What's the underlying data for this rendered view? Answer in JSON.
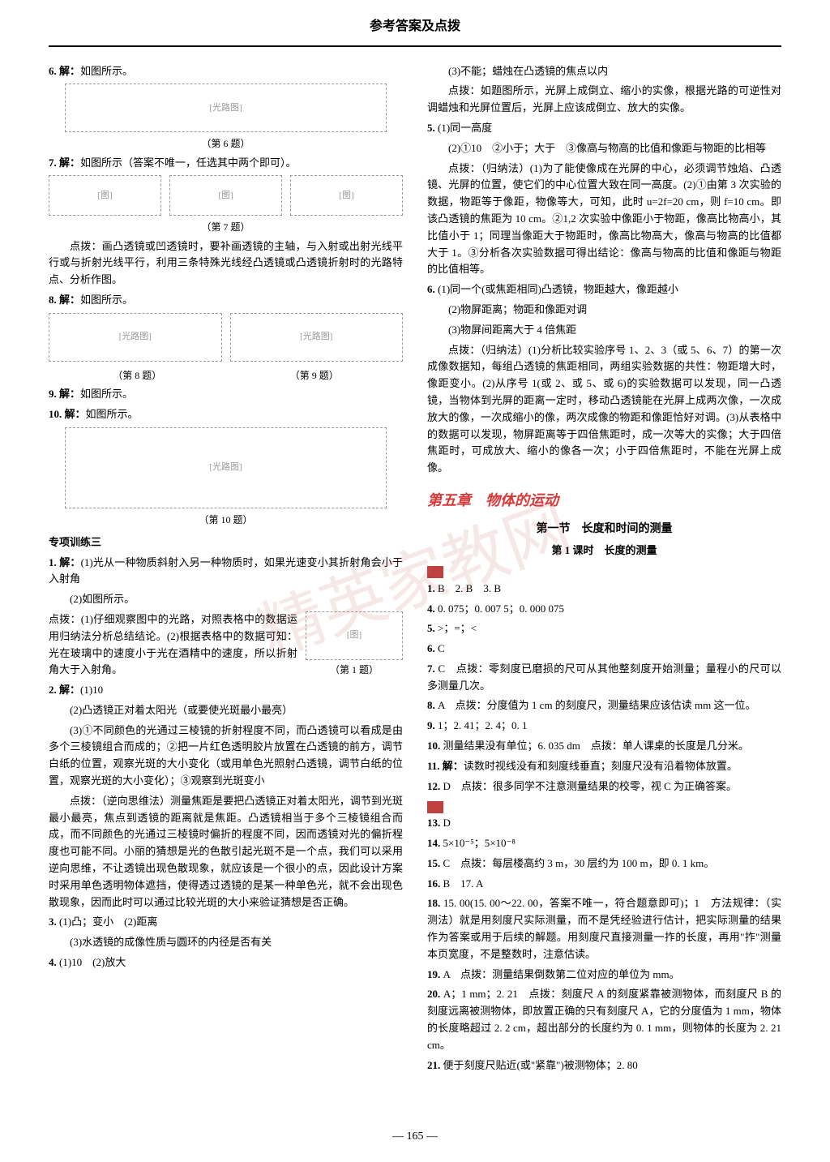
{
  "header": {
    "title": "参考答案及点拨"
  },
  "left_column": {
    "items": [
      {
        "label": "6.",
        "prefix": "解：",
        "text": "如图所示。"
      },
      {
        "type": "figure",
        "caption": "（第 6 题）"
      },
      {
        "label": "7.",
        "prefix": "解：",
        "text": "如图所示（答案不唯一，任选其中两个即可）。"
      },
      {
        "type": "figure-row",
        "count": 3
      },
      {
        "type": "caption",
        "text": "（第 7 题）"
      },
      {
        "type": "para",
        "text": "点拨：画凸透镜或凹透镜时，要补画透镜的主轴，与入射或出射光线平行或与折射光线平行，利用三条特殊光线经凸透镜或凸透镜折射时的光路特点、分析作图。"
      },
      {
        "label": "8.",
        "prefix": "解：",
        "text": "如图所示。"
      },
      {
        "type": "figure-row-2"
      },
      {
        "type": "caption-row",
        "left": "（第 8 题）",
        "right": "（第 9 题）"
      },
      {
        "label": "9.",
        "prefix": "解：",
        "text": "如图所示。"
      },
      {
        "label": "10.",
        "prefix": "解：",
        "text": "如图所示。"
      },
      {
        "type": "figure-large",
        "caption": "（第 10 题）"
      },
      {
        "type": "subtitle",
        "text": "专项训练三"
      },
      {
        "label": "1.",
        "prefix": "解：",
        "text": "(1)光从一种物质斜射入另一种物质时，如果光速变小其折射角会小于入射角"
      },
      {
        "type": "para",
        "text": "(2)如图所示。"
      },
      {
        "type": "para-with-figure",
        "text": "点拨：(1)仔细观察图中的光路，对照表格中的数据运用归纳法分析总结结论。(2)根据表格中的数据可知：光在玻璃中的速度小于光在酒精中的速度，所以折射角大于入射角。",
        "caption": "（第 1 题）"
      },
      {
        "label": "2.",
        "prefix": "解：",
        "text": "(1)10"
      },
      {
        "type": "para",
        "text": "(2)凸透镜正对着太阳光（或要使光斑最小最亮）"
      },
      {
        "type": "para",
        "text": "(3)①不同颜色的光通过三棱镜的折射程度不同，而凸透镜可以看成是由多个三棱镜组合而成的；②把一片红色透明胶片放置在凸透镜的前方，调节白纸的位置，观察光斑的大小变化（或用单色光照射凸透镜，调节白纸的位置，观察光斑的大小变化）；③观察到光斑变小"
      },
      {
        "type": "para",
        "text": "点拨：（逆向思维法）测量焦距是要把凸透镜正对着太阳光，调节到光斑最小最亮，焦点到透镜的距离就是焦距。凸透镜相当于多个三棱镜组合而成，而不同颜色的光通过三棱镜时偏折的程度不同，因而透镜对光的偏折程度也可能不同。小丽的猜想是光的色散引起光斑不是一个点，我们可以采用逆向思维，不让透镜出现色散现象，就应该是一个很小的点，因此设计方案时采用单色透明物体遮挡，使得透过透镜的是某一种单色光，就不会出现色散现象，因而此时可以通过比较光斑的大小来验证猜想是否正确。"
      },
      {
        "label": "3.",
        "text": "(1)凸；变小　(2)距离"
      },
      {
        "type": "para",
        "text": "(3)水透镜的成像性质与圆环的内径是否有关"
      },
      {
        "label": "4.",
        "text": "(1)10　(2)放大"
      }
    ]
  },
  "right_column": {
    "items": [
      {
        "type": "para",
        "text": "(3)不能；蜡烛在凸透镜的焦点以内"
      },
      {
        "type": "para",
        "text": "点拨：如题图所示，光屏上成倒立、缩小的实像，根据光路的可逆性对调蜡烛和光屏位置后，光屏上应该成倒立、放大的实像。"
      },
      {
        "label": "5.",
        "text": "(1)同一高度"
      },
      {
        "type": "para",
        "text": "(2)①10　②小于；大于　③像高与物高的比值和像距与物距的比相等"
      },
      {
        "type": "para",
        "text": "点拨：（归纳法）(1)为了能使像成在光屏的中心，必须调节烛焰、凸透镜、光屏的位置，使它们的中心位置大致在同一高度。(2)①由第 3 次实验的数据，物距等于像距，物像等大，可知，此时 u=2f=20 cm，则 f=10 cm。即该凸透镜的焦距为 10 cm。②1,2 次实验中像距小于物距，像高比物高小，其比值小于 1；同理当像距大于物距时，像高比物高大，像高与物高的比值都大于 1。③分析各次实验数据可得出结论：像高与物高的比值和像距与物距的比值相等。"
      },
      {
        "label": "6.",
        "text": "(1)同一个(或焦距相同)凸透镜，物距越大，像距越小"
      },
      {
        "type": "para",
        "text": "(2)物屏距离；物距和像距对调"
      },
      {
        "type": "para",
        "text": "(3)物屏间距离大于 4 倍焦距"
      },
      {
        "type": "para",
        "text": "点拨：（归纳法）(1)分析比较实验序号 1、2、3（或 5、6、7）的第一次成像数据知，每组凸透镜的焦距相同，两组实验数据的共性：物距增大时，像距变小。(2)从序号 1(或 2、或 5、或 6)的实验数据可以发现，同一凸透镜，当物体到光屏的距离一定时，移动凸透镜能在光屏上成两次像，一次成放大的像，一次成缩小的像，两次成像的物距和像距恰好对调。(3)从表格中的数据可以发现，物屏距离等于四倍焦距时，成一次等大的实像；大于四倍焦距时，可成放大、缩小的像各一次；小于四倍焦距时，不能在光屏上成像。"
      },
      {
        "type": "section-title",
        "text": "第五章　物体的运动"
      },
      {
        "type": "subsection-title",
        "text": "第一节　长度和时间的测量"
      },
      {
        "type": "lesson-title",
        "text": "第 1 课时　长度的测量"
      },
      {
        "type": "icon"
      },
      {
        "label": "1.",
        "text": "B　2. B　3. B"
      },
      {
        "label": "4.",
        "text": "0. 075；0. 007 5；0. 000 075"
      },
      {
        "label": "5.",
        "text": ">；=；<"
      },
      {
        "label": "6.",
        "text": "C"
      },
      {
        "label": "7.",
        "text": "C　点拨：零刻度已磨损的尺可从其他整刻度开始测量；量程小的尺可以多测量几次。"
      },
      {
        "label": "8.",
        "text": "A　点拨：分度值为 1 cm 的刻度尺，测量结果应该估读 mm 这一位。"
      },
      {
        "label": "9.",
        "text": "1；2. 41；2. 4；0. 1"
      },
      {
        "label": "10.",
        "text": "测量结果没有单位；6. 035 dm　点拨：单人课桌的长度是几分米。"
      },
      {
        "label": "11.",
        "prefix": "解：",
        "text": "读数时视线没有和刻度线垂直；刻度尺没有沿着物体放置。"
      },
      {
        "label": "12.",
        "text": "D　点拨：很多同学不注意测量结果的校零，视 C 为正确答案。"
      },
      {
        "type": "icon"
      },
      {
        "label": "13.",
        "text": "D"
      },
      {
        "label": "14.",
        "text": "5×10⁻⁵；5×10⁻⁸"
      },
      {
        "label": "15.",
        "text": "C　点拨：每层楼高约 3 m，30 层约为 100 m，即 0. 1 km。"
      },
      {
        "label": "16.",
        "text": "B　17. A"
      },
      {
        "label": "18.",
        "text": "15. 00(15. 00～22. 00，答案不唯一，符合题意即可)；1　方法规律：（实测法）就是用刻度尺实际测量，而不是凭经验进行估计，把实际测量的结果作为答案或用于后续的解题。用刻度尺直接测量一拃的长度，再用\"拃\"测量本页宽度，不是整数时，注意估读。"
      },
      {
        "label": "19.",
        "text": "A　点拨：测量结果倒数第二位对应的单位为 mm。"
      },
      {
        "label": "20.",
        "text": "A；1 mm；2. 21　点拨：刻度尺 A 的刻度紧靠被测物体，而刻度尺 B 的刻度远离被测物体，即放置正确的只有刻度尺 A，它的分度值为 1 mm，物体的长度略超过 2. 2 cm，超出部分的长度约为 0. 1 mm，则物体的长度为 2. 21 cm。"
      },
      {
        "label": "21.",
        "text": "便于刻度尺贴近(或\"紧靠\")被测物体；2. 80"
      }
    ]
  },
  "page_number": "165",
  "watermark_text": "精英家教网"
}
